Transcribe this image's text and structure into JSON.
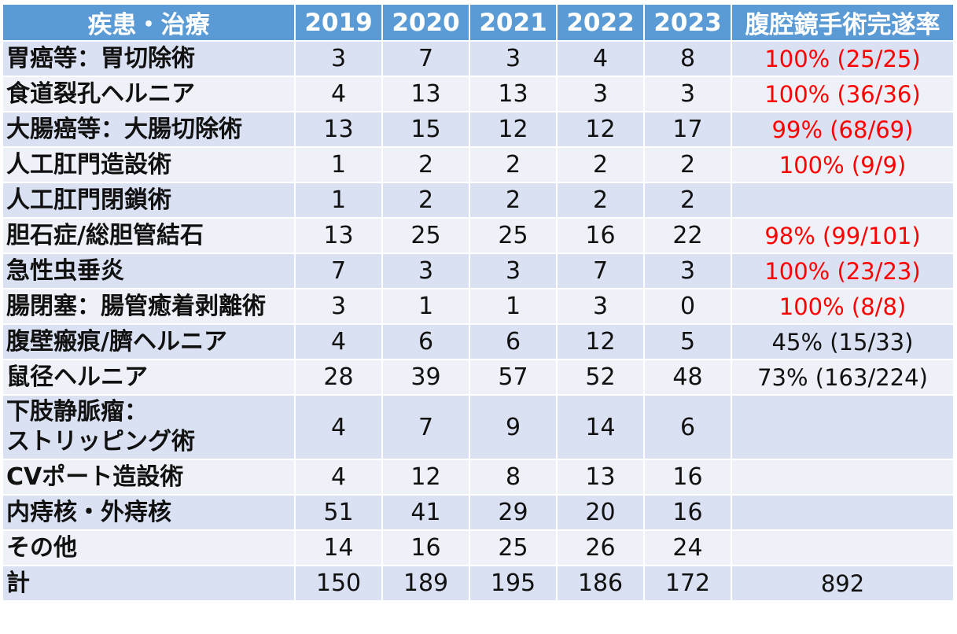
{
  "chart_data": {
    "type": "table",
    "columns": [
      "疾患・治療",
      "2019",
      "2020",
      "2021",
      "2022",
      "2023",
      "腹腔鏡手術完遂率"
    ],
    "rows": [
      {
        "name": [
          "胃癌等：胃切除術"
        ],
        "values": [
          3,
          7,
          3,
          4,
          8
        ],
        "rate": "100% (25/25)",
        "highlight": true
      },
      {
        "name": [
          "食道裂孔ヘルニア"
        ],
        "values": [
          4,
          13,
          13,
          3,
          3
        ],
        "rate": "100% (36/36)",
        "highlight": true
      },
      {
        "name": [
          "大腸癌等：大腸切除術"
        ],
        "values": [
          13,
          15,
          12,
          12,
          17
        ],
        "rate": "99% (68/69)",
        "highlight": true
      },
      {
        "name": [
          "人工肛門造設術"
        ],
        "values": [
          1,
          2,
          2,
          2,
          2
        ],
        "rate": "100% (9/9)",
        "highlight": true
      },
      {
        "name": [
          "人工肛門閉鎖術"
        ],
        "values": [
          1,
          2,
          2,
          2,
          2
        ],
        "rate": "",
        "highlight": false
      },
      {
        "name": [
          "胆石症/総胆管結石"
        ],
        "values": [
          13,
          25,
          25,
          16,
          22
        ],
        "rate": "98% (99/101)",
        "highlight": true
      },
      {
        "name": [
          "急性虫垂炎"
        ],
        "values": [
          7,
          3,
          3,
          7,
          3
        ],
        "rate": "100% (23/23)",
        "highlight": true
      },
      {
        "name": [
          "腸閉塞：腸管癒着剥離術"
        ],
        "values": [
          3,
          1,
          1,
          3,
          0
        ],
        "rate": "100% (8/8)",
        "highlight": true
      },
      {
        "name": [
          "腹壁瘢痕/臍ヘルニア"
        ],
        "values": [
          4,
          6,
          6,
          12,
          5
        ],
        "rate": "45% (15/33)",
        "highlight": false
      },
      {
        "name": [
          "鼠径ヘルニア"
        ],
        "values": [
          28,
          39,
          57,
          52,
          48
        ],
        "rate": "73% (163/224)",
        "highlight": false
      },
      {
        "name": [
          "下肢静脈瘤：",
          "ストリッピング術"
        ],
        "values": [
          4,
          7,
          9,
          14,
          6
        ],
        "rate": "",
        "highlight": false
      },
      {
        "name": [
          "CVポート造設術"
        ],
        "values": [
          4,
          12,
          8,
          13,
          16
        ],
        "rate": "",
        "highlight": false
      },
      {
        "name": [
          "内痔核・外痔核"
        ],
        "values": [
          51,
          41,
          29,
          20,
          16
        ],
        "rate": "",
        "highlight": false
      },
      {
        "name": [
          "その他"
        ],
        "values": [
          14,
          16,
          25,
          26,
          24
        ],
        "rate": "",
        "highlight": false
      },
      {
        "name": [
          "計"
        ],
        "values": [
          150,
          189,
          195,
          186,
          172
        ],
        "rate": "892",
        "highlight": false
      }
    ]
  },
  "colors": {
    "header_bg": "#5b9bd5",
    "row_even": "#d9e1f2",
    "row_odd": "#eef2f8",
    "rate_highlight": "#ff0000"
  }
}
